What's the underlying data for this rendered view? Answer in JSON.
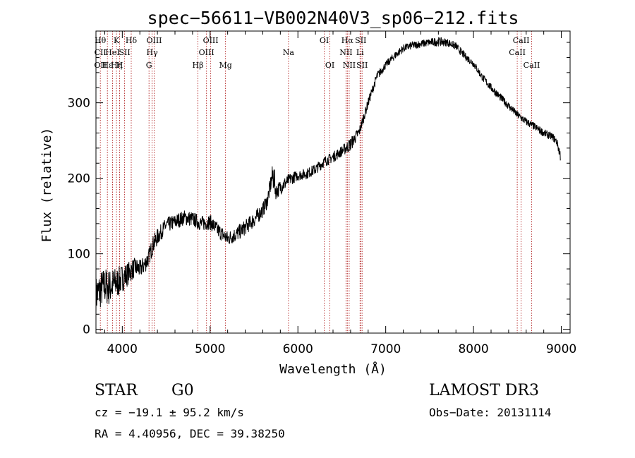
{
  "chart_data": {
    "type": "line",
    "title": "spec−56611−VB002N40V3_sp06−212.fits",
    "xlabel": "Wavelength (Å)",
    "ylabel": "Flux (relative)",
    "xlim": [
      3700,
      9100
    ],
    "ylim": [
      -5,
      395
    ],
    "x_ticks": [
      4000,
      5000,
      6000,
      7000,
      8000,
      9000
    ],
    "y_ticks": [
      0,
      100,
      200,
      300
    ],
    "x_tick_labels": [
      "4000",
      "5000",
      "6000",
      "7000",
      "8000",
      "9000"
    ],
    "y_tick_labels": [
      "0",
      "100",
      "200",
      "300"
    ],
    "series": [
      {
        "name": "flux",
        "x": [
          3700,
          3750,
          3800,
          3850,
          3900,
          3950,
          4000,
          4050,
          4100,
          4150,
          4200,
          4250,
          4300,
          4350,
          4400,
          4500,
          4600,
          4700,
          4800,
          4900,
          5000,
          5100,
          5200,
          5300,
          5400,
          5500,
          5600,
          5650,
          5700,
          5720,
          5750,
          5800,
          5900,
          6000,
          6100,
          6200,
          6300,
          6400,
          6500,
          6600,
          6700,
          6800,
          6900,
          7000,
          7100,
          7200,
          7300,
          7400,
          7500,
          7600,
          7700,
          7800,
          7900,
          8000,
          8100,
          8200,
          8300,
          8400,
          8500,
          8600,
          8700,
          8800,
          8900,
          8950,
          8990
        ],
        "y": [
          45,
          52,
          58,
          55,
          60,
          62,
          68,
          72,
          78,
          82,
          80,
          85,
          95,
          112,
          122,
          138,
          142,
          148,
          146,
          140,
          142,
          130,
          120,
          126,
          135,
          145,
          158,
          170,
          198,
          205,
          182,
          188,
          198,
          204,
          206,
          212,
          222,
          228,
          236,
          245,
          262,
          300,
          335,
          350,
          362,
          372,
          376,
          378,
          380,
          381,
          380,
          375,
          362,
          352,
          334,
          320,
          308,
          296,
          284,
          275,
          268,
          260,
          255,
          248,
          230
        ],
        "noise": [
          25,
          25,
          25,
          24,
          22,
          20,
          18,
          16,
          14,
          13,
          12,
          12,
          12,
          12,
          11,
          10,
          10,
          10,
          10,
          10,
          10,
          10,
          10,
          10,
          10,
          10,
          10,
          10,
          12,
          22,
          10,
          10,
          8,
          7,
          7,
          7,
          7,
          7,
          7,
          9,
          7,
          6,
          6,
          5,
          5,
          5,
          5,
          5,
          5,
          6,
          5,
          5,
          5,
          5,
          5,
          5,
          5,
          5,
          5,
          5,
          5,
          5,
          5,
          5,
          8
        ]
      }
    ],
    "line_groups": [
      {
        "x": 3750,
        "top": "Hθ",
        "mid": "CII",
        "low": "OII"
      },
      {
        "x": 3830,
        "top": "",
        "mid": "",
        "low": "Hε"
      },
      {
        "x": 3889,
        "top": "",
        "mid": "HeI",
        "low": ""
      },
      {
        "x": 3934,
        "top": "K",
        "mid": "",
        "low": "Hη"
      },
      {
        "x": 3969,
        "top": "",
        "mid": "",
        "low": "H"
      },
      {
        "x": 4026,
        "top": "",
        "mid": "SII",
        "low": ""
      },
      {
        "x": 4102,
        "top": "Hδ",
        "mid": "",
        "low": ""
      },
      {
        "x": 4304,
        "top": "",
        "mid": "",
        "low": "G"
      },
      {
        "x": 4340,
        "top": "",
        "mid": "Hγ",
        "low": ""
      },
      {
        "x": 4363,
        "top": "OIII",
        "mid": "",
        "low": ""
      },
      {
        "x": 4861,
        "top": "",
        "mid": "",
        "low": "Hβ"
      },
      {
        "x": 4959,
        "top": "",
        "mid": "OIII",
        "low": ""
      },
      {
        "x": 5007,
        "top": "OIII",
        "mid": "",
        "low": ""
      },
      {
        "x": 5175,
        "top": "",
        "mid": "",
        "low": "Mg"
      },
      {
        "x": 5893,
        "top": "",
        "mid": "Na",
        "low": ""
      },
      {
        "x": 6300,
        "top": "OI",
        "mid": "",
        "low": ""
      },
      {
        "x": 6364,
        "top": "",
        "mid": "",
        "low": "OI"
      },
      {
        "x": 6548,
        "top": "",
        "mid": "NII",
        "low": ""
      },
      {
        "x": 6563,
        "top": "Hα",
        "mid": "",
        "low": ""
      },
      {
        "x": 6584,
        "top": "",
        "mid": "",
        "low": "NII"
      },
      {
        "x": 6708,
        "top": "",
        "mid": "Li",
        "low": ""
      },
      {
        "x": 6716,
        "top": "SII",
        "mid": "",
        "low": ""
      },
      {
        "x": 6731,
        "top": "",
        "mid": "",
        "low": "SII"
      },
      {
        "x": 8498,
        "top": "",
        "mid": "CaII",
        "low": ""
      },
      {
        "x": 8542,
        "top": "CaII",
        "mid": "",
        "low": ""
      },
      {
        "x": 8662,
        "top": "",
        "mid": "",
        "low": "CaII"
      }
    ],
    "colors": {
      "spectrum": "#000000",
      "line_markers": "#b22222",
      "axes": "#000000"
    }
  },
  "info": {
    "class": "STAR",
    "subclass": "G0",
    "survey": "LAMOST DR3",
    "redshift": "cz = −19.1 ± 95.2 km/s",
    "obs_date": "Obs−Date: 20131114",
    "coords": "RA =   4.40956, DEC =  39.38250"
  }
}
